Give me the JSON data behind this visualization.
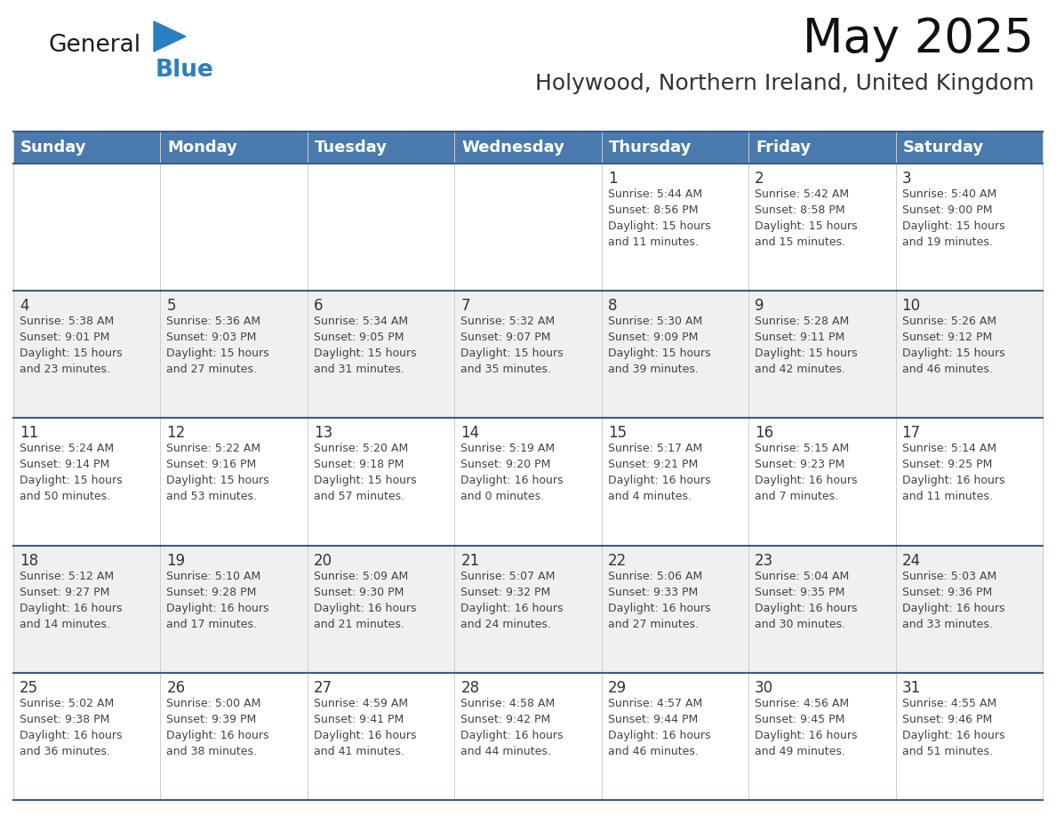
{
  "title": "May 2025",
  "subtitle": "Holywood, Northern Ireland, United Kingdom",
  "header_bg_color": "#4a7aad",
  "header_text_color": "#FFFFFF",
  "cell_bg_color_white": "#FFFFFF",
  "cell_bg_color_gray": "#F0F0F0",
  "day_number_color": "#333333",
  "info_text_color": "#444444",
  "row_divider_color": "#3a5a8a",
  "col_divider_color": "#CCCCCC",
  "days_of_week": [
    "Sunday",
    "Monday",
    "Tuesday",
    "Wednesday",
    "Thursday",
    "Friday",
    "Saturday"
  ],
  "weeks": [
    [
      {
        "day": "",
        "info": ""
      },
      {
        "day": "",
        "info": ""
      },
      {
        "day": "",
        "info": ""
      },
      {
        "day": "",
        "info": ""
      },
      {
        "day": "1",
        "info": "Sunrise: 5:44 AM\nSunset: 8:56 PM\nDaylight: 15 hours\nand 11 minutes."
      },
      {
        "day": "2",
        "info": "Sunrise: 5:42 AM\nSunset: 8:58 PM\nDaylight: 15 hours\nand 15 minutes."
      },
      {
        "day": "3",
        "info": "Sunrise: 5:40 AM\nSunset: 9:00 PM\nDaylight: 15 hours\nand 19 minutes."
      }
    ],
    [
      {
        "day": "4",
        "info": "Sunrise: 5:38 AM\nSunset: 9:01 PM\nDaylight: 15 hours\nand 23 minutes."
      },
      {
        "day": "5",
        "info": "Sunrise: 5:36 AM\nSunset: 9:03 PM\nDaylight: 15 hours\nand 27 minutes."
      },
      {
        "day": "6",
        "info": "Sunrise: 5:34 AM\nSunset: 9:05 PM\nDaylight: 15 hours\nand 31 minutes."
      },
      {
        "day": "7",
        "info": "Sunrise: 5:32 AM\nSunset: 9:07 PM\nDaylight: 15 hours\nand 35 minutes."
      },
      {
        "day": "8",
        "info": "Sunrise: 5:30 AM\nSunset: 9:09 PM\nDaylight: 15 hours\nand 39 minutes."
      },
      {
        "day": "9",
        "info": "Sunrise: 5:28 AM\nSunset: 9:11 PM\nDaylight: 15 hours\nand 42 minutes."
      },
      {
        "day": "10",
        "info": "Sunrise: 5:26 AM\nSunset: 9:12 PM\nDaylight: 15 hours\nand 46 minutes."
      }
    ],
    [
      {
        "day": "11",
        "info": "Sunrise: 5:24 AM\nSunset: 9:14 PM\nDaylight: 15 hours\nand 50 minutes."
      },
      {
        "day": "12",
        "info": "Sunrise: 5:22 AM\nSunset: 9:16 PM\nDaylight: 15 hours\nand 53 minutes."
      },
      {
        "day": "13",
        "info": "Sunrise: 5:20 AM\nSunset: 9:18 PM\nDaylight: 15 hours\nand 57 minutes."
      },
      {
        "day": "14",
        "info": "Sunrise: 5:19 AM\nSunset: 9:20 PM\nDaylight: 16 hours\nand 0 minutes."
      },
      {
        "day": "15",
        "info": "Sunrise: 5:17 AM\nSunset: 9:21 PM\nDaylight: 16 hours\nand 4 minutes."
      },
      {
        "day": "16",
        "info": "Sunrise: 5:15 AM\nSunset: 9:23 PM\nDaylight: 16 hours\nand 7 minutes."
      },
      {
        "day": "17",
        "info": "Sunrise: 5:14 AM\nSunset: 9:25 PM\nDaylight: 16 hours\nand 11 minutes."
      }
    ],
    [
      {
        "day": "18",
        "info": "Sunrise: 5:12 AM\nSunset: 9:27 PM\nDaylight: 16 hours\nand 14 minutes."
      },
      {
        "day": "19",
        "info": "Sunrise: 5:10 AM\nSunset: 9:28 PM\nDaylight: 16 hours\nand 17 minutes."
      },
      {
        "day": "20",
        "info": "Sunrise: 5:09 AM\nSunset: 9:30 PM\nDaylight: 16 hours\nand 21 minutes."
      },
      {
        "day": "21",
        "info": "Sunrise: 5:07 AM\nSunset: 9:32 PM\nDaylight: 16 hours\nand 24 minutes."
      },
      {
        "day": "22",
        "info": "Sunrise: 5:06 AM\nSunset: 9:33 PM\nDaylight: 16 hours\nand 27 minutes."
      },
      {
        "day": "23",
        "info": "Sunrise: 5:04 AM\nSunset: 9:35 PM\nDaylight: 16 hours\nand 30 minutes."
      },
      {
        "day": "24",
        "info": "Sunrise: 5:03 AM\nSunset: 9:36 PM\nDaylight: 16 hours\nand 33 minutes."
      }
    ],
    [
      {
        "day": "25",
        "info": "Sunrise: 5:02 AM\nSunset: 9:38 PM\nDaylight: 16 hours\nand 36 minutes."
      },
      {
        "day": "26",
        "info": "Sunrise: 5:00 AM\nSunset: 9:39 PM\nDaylight: 16 hours\nand 38 minutes."
      },
      {
        "day": "27",
        "info": "Sunrise: 4:59 AM\nSunset: 9:41 PM\nDaylight: 16 hours\nand 41 minutes."
      },
      {
        "day": "28",
        "info": "Sunrise: 4:58 AM\nSunset: 9:42 PM\nDaylight: 16 hours\nand 44 minutes."
      },
      {
        "day": "29",
        "info": "Sunrise: 4:57 AM\nSunset: 9:44 PM\nDaylight: 16 hours\nand 46 minutes."
      },
      {
        "day": "30",
        "info": "Sunrise: 4:56 AM\nSunset: 9:45 PM\nDaylight: 16 hours\nand 49 minutes."
      },
      {
        "day": "31",
        "info": "Sunrise: 4:55 AM\nSunset: 9:46 PM\nDaylight: 16 hours\nand 51 minutes."
      }
    ]
  ],
  "logo_general_color": "#1a1a1a",
  "logo_blue_color": "#2B7EC1",
  "logo_triangle_color": "#2B7EC1"
}
